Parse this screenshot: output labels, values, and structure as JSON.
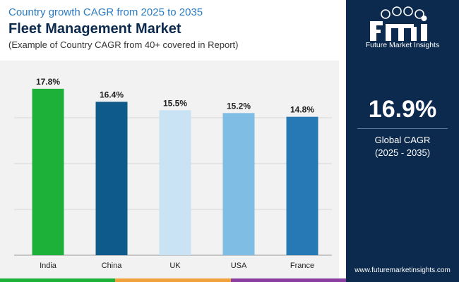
{
  "header": {
    "supertitle": "Country growth CAGR from 2025 to 2035",
    "title": "Fleet Management Market",
    "subtitle": "(Example of Country CAGR from 40+ covered in Report)"
  },
  "chart_data": {
    "type": "bar",
    "categories": [
      "India",
      "China",
      "UK",
      "USA",
      "France"
    ],
    "values": [
      17.8,
      16.4,
      15.5,
      15.2,
      14.8
    ],
    "value_labels": [
      "17.8%",
      "16.4%",
      "15.5%",
      "15.2%",
      "14.8%"
    ],
    "bar_colors": [
      "#1db13a",
      "#0e5a8a",
      "#c9e3f4",
      "#7fbde4",
      "#2679b5"
    ],
    "ylim": [
      0,
      19.6
    ],
    "grid": true,
    "title": "",
    "xlabel": "",
    "ylabel": ""
  },
  "sidebar": {
    "logo_text": "Future Market Insights",
    "cagr_value": "16.9%",
    "cagr_label": "Global CAGR",
    "cagr_period": "(2025 - 2035)",
    "website": "www.futuremarketinsights.com"
  },
  "colors": {
    "navy": "#0c2a4e",
    "accent_blue": "#2b7bc0",
    "strip": [
      "#1db13a",
      "#f0a23a",
      "#8a3fa0"
    ]
  }
}
